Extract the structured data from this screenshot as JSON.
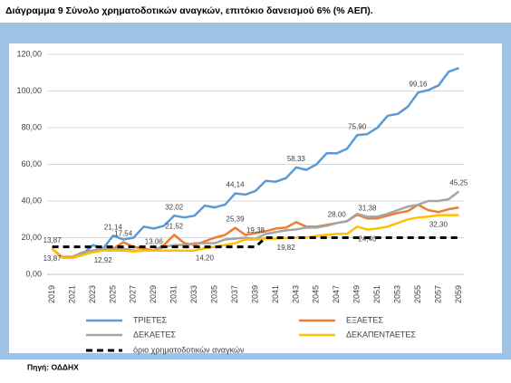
{
  "chart_data": {
    "type": "line",
    "title": "Διάγραμμα 9 Σύνολο χρηματοδοτικών αναγκών, επιτόκιο δανεισμού 6% (% ΑΕΠ).",
    "source": "Πηγή: ΟΔΔΗΧ",
    "categories": [
      "2019",
      null,
      "2021",
      null,
      "2023",
      null,
      "2025",
      null,
      "2027",
      null,
      "2029",
      null,
      "2031",
      null,
      "2033",
      null,
      "2035",
      null,
      "2037",
      null,
      "2039",
      null,
      "2041",
      null,
      "2043",
      null,
      "2045",
      null,
      "2047",
      null,
      "2049",
      null,
      "2051",
      null,
      "2053",
      null,
      "2055",
      null,
      "2057",
      null,
      "2059"
    ],
    "ylim": [
      0,
      120
    ],
    "yticks": [
      {
        "value": 0,
        "label": "0,00"
      },
      {
        "value": 20,
        "label": "20,00"
      },
      {
        "value": 40,
        "label": "40,00"
      },
      {
        "value": 60,
        "label": "60,00"
      },
      {
        "value": 80,
        "label": "80,00"
      },
      {
        "value": 100,
        "label": "100,00"
      },
      {
        "value": 120,
        "label": "120,00"
      }
    ],
    "grid": true,
    "series": [
      {
        "name": "ΤΡΙΕΤΕΣ",
        "color": "#5b9bd5",
        "values": [
          13.87,
          9,
          9,
          11,
          16,
          14,
          21.14,
          19,
          20,
          26,
          25,
          26.5,
          32.02,
          31,
          32,
          37.5,
          36.5,
          38,
          44.14,
          43.5,
          45.5,
          51,
          50.5,
          52.5,
          58.33,
          57,
          60,
          66,
          66,
          68.5,
          75.9,
          76.5,
          80,
          86.5,
          87.5,
          91.5,
          99.16,
          100.5,
          103,
          110.5,
          112.5
        ],
        "value_labels": [
          "13,87",
          null,
          null,
          null,
          null,
          null,
          "21,14",
          null,
          null,
          null,
          null,
          null,
          "32,02",
          null,
          null,
          null,
          null,
          null,
          "44,14",
          null,
          null,
          null,
          null,
          null,
          "58,33",
          null,
          null,
          null,
          null,
          null,
          "75,90",
          null,
          null,
          null,
          null,
          null,
          "99,16",
          null,
          null,
          null,
          null
        ]
      },
      {
        "name": "ΕΞΑΕΤΕΣ",
        "color": "#ed7d31",
        "values": [
          13.87,
          9.5,
          9.5,
          12,
          13,
          14,
          14,
          17.54,
          15,
          14,
          13.06,
          16,
          21.52,
          17,
          16,
          18,
          20,
          21.5,
          25.39,
          21.5,
          22.5,
          23.5,
          25,
          25.5,
          28.5,
          26,
          26,
          27,
          28,
          29,
          32.5,
          30.5,
          30.5,
          32,
          33.5,
          34.5,
          38,
          35,
          34,
          35.5,
          36.5
        ],
        "value_labels": [
          null,
          null,
          null,
          null,
          null,
          null,
          null,
          "17,54",
          null,
          null,
          "13,06",
          null,
          "21,52",
          null,
          null,
          null,
          null,
          null,
          "25,39",
          null,
          null,
          null,
          null,
          null,
          null,
          null,
          null,
          null,
          null,
          null,
          null,
          null,
          null,
          null,
          null,
          null,
          null,
          null,
          null,
          null,
          null
        ]
      },
      {
        "name": "ΔΕΚΑΕΤΕΣ",
        "color": "#a5a5a5",
        "values": [
          13.87,
          9,
          9,
          12,
          13,
          14,
          14,
          14,
          13,
          13,
          13,
          15,
          16,
          16,
          17,
          17,
          17,
          19,
          19.5,
          20,
          19.38,
          22,
          23,
          24,
          24.5,
          25.5,
          25.5,
          26.5,
          28,
          29,
          33,
          31.38,
          31.5,
          33,
          35,
          37,
          38,
          40,
          40,
          41,
          45.25
        ],
        "value_labels": [
          null,
          null,
          null,
          null,
          null,
          null,
          null,
          null,
          null,
          null,
          null,
          null,
          null,
          null,
          null,
          null,
          null,
          null,
          null,
          null,
          "19,38",
          null,
          null,
          null,
          null,
          null,
          null,
          null,
          "28,00",
          null,
          null,
          "31,38",
          null,
          null,
          null,
          null,
          null,
          null,
          null,
          null,
          "45,25"
        ]
      },
      {
        "name": "ΔΕΚΑΠΕΝΤΑΕΤΕΣ",
        "color": "#ffc000",
        "values": [
          13.87,
          9,
          9,
          10.5,
          12,
          12.92,
          13,
          13,
          12.5,
          13,
          13,
          13,
          13,
          13,
          13,
          14.2,
          15,
          16,
          17,
          19,
          19,
          19.5,
          19.5,
          19.82,
          20,
          20,
          21,
          21.5,
          22,
          22,
          26,
          24.4,
          25,
          26,
          28,
          30,
          31,
          31.5,
          32.3,
          32.3,
          32.3
        ],
        "value_labels": [
          "13,87",
          null,
          null,
          null,
          null,
          "12,92",
          null,
          null,
          null,
          null,
          null,
          null,
          null,
          null,
          null,
          "14,20",
          null,
          null,
          null,
          null,
          null,
          null,
          null,
          "19,82",
          null,
          null,
          null,
          null,
          null,
          null,
          null,
          "24,40",
          null,
          null,
          null,
          null,
          null,
          null,
          "32,30",
          null,
          null
        ]
      },
      {
        "name": "όριο χρηματοδοτικών αναγκών",
        "color": "#000000",
        "dashed": true,
        "values": [
          15,
          15,
          15,
          15,
          15,
          15,
          15,
          15,
          15,
          15,
          15,
          15,
          15,
          15,
          15,
          15,
          15,
          15,
          15,
          15,
          15,
          20,
          20,
          20,
          20,
          20,
          20,
          20,
          20,
          20,
          20,
          20,
          20,
          20,
          20,
          20,
          20,
          20,
          20,
          20,
          20
        ]
      }
    ]
  }
}
